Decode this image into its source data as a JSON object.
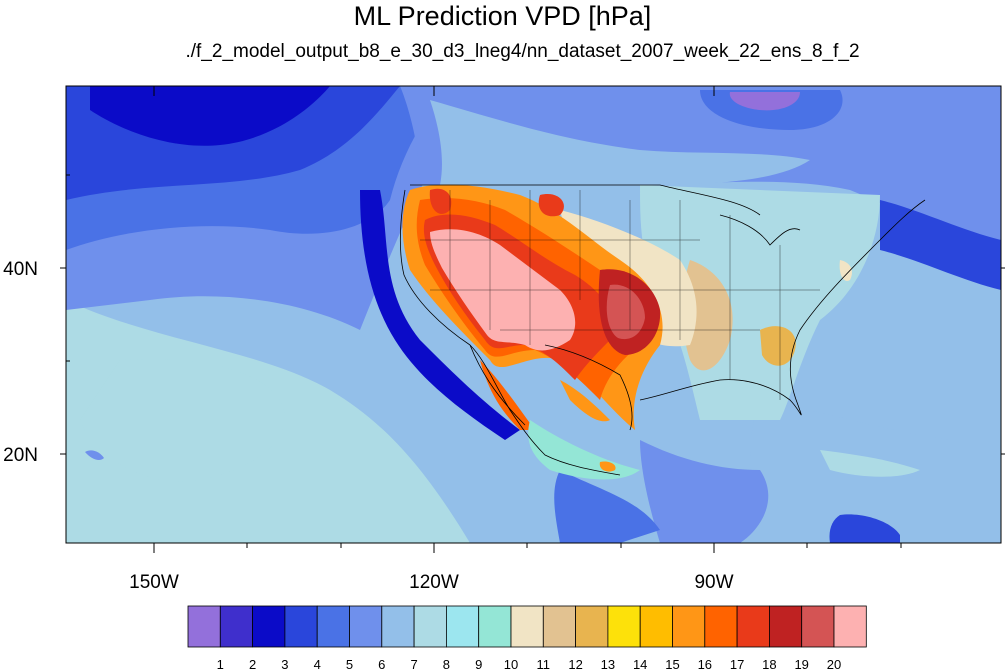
{
  "title": "ML Prediction VPD [hPa]",
  "subtitle": "./f_2_model_output_b8_e_30_d3_lneg4/nn_dataset_2007_week_22_ens_8_f_2",
  "axes": {
    "lon_ticks": [
      "150W",
      "120W",
      "90W"
    ],
    "lat_ticks": [
      "40N",
      "20N"
    ]
  },
  "colorbar": {
    "labels": [
      "1",
      "2",
      "3",
      "4",
      "5",
      "6",
      "7",
      "8",
      "9",
      "10",
      "11",
      "12",
      "13",
      "14",
      "15",
      "16",
      "17",
      "18",
      "19",
      "20"
    ],
    "colors": [
      "#9370db",
      "#3f2fcc",
      "#0b0bc8",
      "#2a46db",
      "#4a72e6",
      "#6f90ec",
      "#93bfe9",
      "#addbe5",
      "#9ce6ef",
      "#94e6d6",
      "#f1e4c5",
      "#e2c291",
      "#e8b44f",
      "#fde10a",
      "#ffbd00",
      "#ff9616",
      "#ff6300",
      "#e93a1a",
      "#bf2222",
      "#d45454",
      "#fdb1b1"
    ]
  },
  "chart_data": {
    "type": "heatmap",
    "variable": "VPD",
    "units": "hPa",
    "lon_range": [
      -160,
      -61
    ],
    "lat_range": [
      10,
      59
    ],
    "levels": [
      1,
      2,
      3,
      4,
      5,
      6,
      7,
      8,
      9,
      10,
      11,
      12,
      13,
      14,
      15,
      16,
      17,
      18,
      19,
      20
    ]
  }
}
